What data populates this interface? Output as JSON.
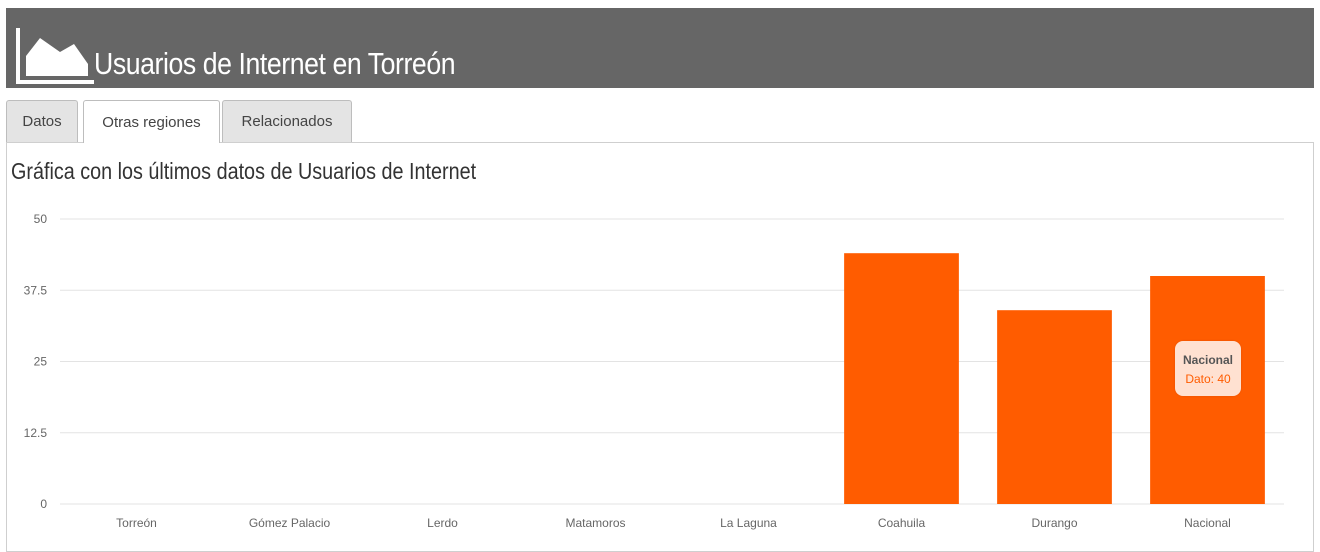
{
  "header": {
    "title": "Usuarios de Internet en Torreón",
    "icon": "area-chart-icon"
  },
  "tabs": [
    {
      "label": "Datos",
      "active": false
    },
    {
      "label": "Otras regiones",
      "active": true
    },
    {
      "label": "Relacionados",
      "active": false
    }
  ],
  "section": {
    "title": "Gráfica con los últimos datos de Usuarios de Internet"
  },
  "colors": {
    "bar": "#ff5c00",
    "header": "#666666",
    "grid": "#e3e3e3"
  },
  "tooltip": {
    "name": "Nacional",
    "value_text": "Dato: 40"
  },
  "chart_data": {
    "type": "bar",
    "categories": [
      "Torreón",
      "Gómez Palacio",
      "Lerdo",
      "Matamoros",
      "La Laguna",
      "Coahuila",
      "Durango",
      "Nacional"
    ],
    "values": [
      0,
      0,
      0,
      0,
      0,
      44,
      34,
      40
    ],
    "yticks": [
      "0",
      "12.5",
      "25",
      "37.5",
      "50"
    ],
    "ylim": [
      0,
      50
    ],
    "grid": true,
    "legend": "none"
  }
}
